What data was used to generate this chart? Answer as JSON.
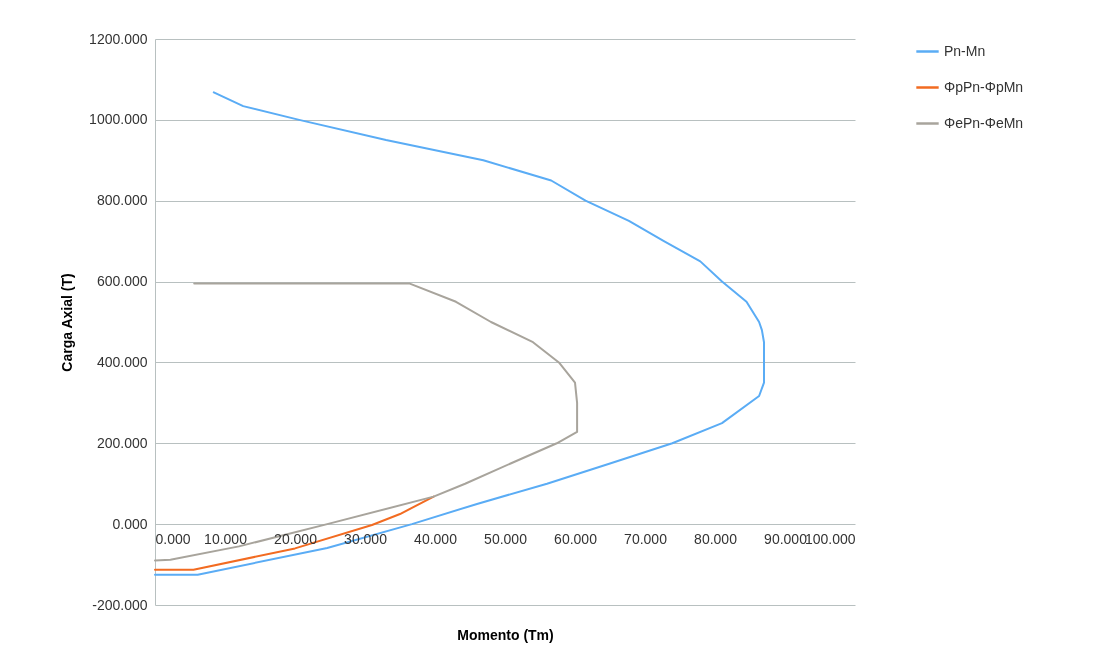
{
  "chart_data": {
    "type": "line",
    "xlabel": "Momento (Tm)",
    "ylabel": "Carga Axial (T)",
    "xlim": [
      0,
      100
    ],
    "ylim": [
      -200,
      1200
    ],
    "xticks": [
      {
        "value": 0,
        "label": "0.000"
      },
      {
        "value": 10,
        "label": "10.000"
      },
      {
        "value": 20,
        "label": "20.000"
      },
      {
        "value": 30,
        "label": "30.000"
      },
      {
        "value": 40,
        "label": "40.000"
      },
      {
        "value": 50,
        "label": "50.000"
      },
      {
        "value": 60,
        "label": "60.000"
      },
      {
        "value": 70,
        "label": "70.000"
      },
      {
        "value": 80,
        "label": "80.000"
      },
      {
        "value": 90,
        "label": "90.000"
      },
      {
        "value": 100,
        "label": "100.000"
      }
    ],
    "yticks": [
      {
        "value": -200,
        "label": "-200.000"
      },
      {
        "value": 0,
        "label": "0.000"
      },
      {
        "value": 200,
        "label": "200.000"
      },
      {
        "value": 400,
        "label": "400.000"
      },
      {
        "value": 600,
        "label": "600.000"
      },
      {
        "value": 800,
        "label": "800.000"
      },
      {
        "value": 1000,
        "label": "1000.000"
      },
      {
        "value": 1200,
        "label": "1200.000"
      }
    ],
    "grid": "y",
    "legend": "right",
    "marker": "none",
    "line_style": "solid",
    "series": [
      {
        "name": "Pn-Mn",
        "color": "#5aacf5",
        "x": [
          0,
          6.1,
          24.6,
          36.7,
          46,
          56,
          65,
          73.9,
          81,
          86.3,
          87,
          87,
          86.7,
          86.3,
          84.5,
          81,
          77.9,
          72.7,
          67.7,
          61.5,
          56.6,
          46.9,
          33,
          20.6,
          12.6,
          8.4
        ],
        "values": [
          -125,
          -125,
          -59,
          0,
          50,
          100,
          150,
          200,
          250,
          317,
          350,
          450,
          480,
          500,
          550,
          600,
          650,
          700,
          750,
          800,
          850,
          900,
          950,
          1000,
          1034,
          1068
        ]
      },
      {
        "name": "ΦpPn-ΦpMn",
        "color": "#f26b21",
        "x": [
          0,
          5.5,
          20,
          31,
          35,
          39.8
        ],
        "values": [
          -113,
          -113,
          -60,
          -2,
          25,
          68
        ]
      },
      {
        "name": "ΦePn-ΦeMn",
        "color": "#a8a49c",
        "x": [
          0,
          2.2,
          12,
          24.6,
          39.8,
          44.3,
          50.8,
          57.4,
          60.3,
          60.3,
          60,
          57.7,
          54,
          48,
          43,
          36.4,
          5.6
        ],
        "values": [
          -90,
          -88,
          -55,
          0,
          68,
          100,
          150,
          200,
          228,
          300,
          350,
          400,
          450,
          500,
          550,
          595,
          595
        ]
      }
    ]
  }
}
